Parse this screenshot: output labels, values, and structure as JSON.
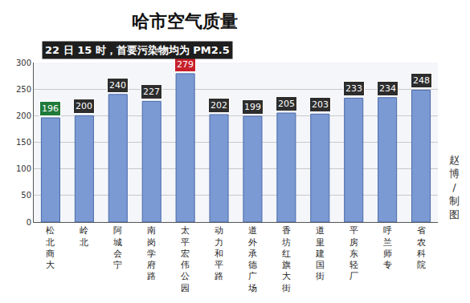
{
  "chart_data": {
    "type": "bar",
    "title": "哈市空气质量",
    "subtitle": "22 日 15 时，首要污染物均为 PM2.5",
    "categories": [
      "松北商大",
      "岭北",
      "阿城会宁",
      "南岗学府路",
      "太平宏伟公园",
      "动力和平路",
      "道外承德广场",
      "香坊红旗大街",
      "道里建国街",
      "平房东轻厂",
      "呼兰师专",
      "省农科院"
    ],
    "values": [
      196,
      200,
      240,
      227,
      279,
      202,
      199,
      205,
      203,
      233,
      234,
      248
    ],
    "color": "#7b9ad4",
    "ylim": [
      0,
      300
    ],
    "yticks": [
      0,
      50,
      100,
      150,
      200,
      250,
      300
    ],
    "grid": true,
    "data_labels": true,
    "annotations": [
      {
        "text": "赵博/制图"
      }
    ]
  }
}
